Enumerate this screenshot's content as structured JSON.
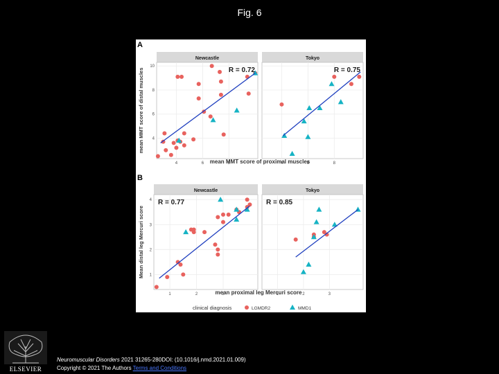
{
  "page_title": "Fig. 6",
  "citation": {
    "journal": "Neuromuscular Disorders",
    "rest": " 2021 31265-280DOI: (10.1016/j.nmd.2021.01.009)",
    "copyright": "Copyright © 2021 The Authors ",
    "terms": "Terms and Conditions"
  },
  "publisher": {
    "name": "ELSEVIER",
    "icon": "elsevier-tree-icon"
  },
  "legend": {
    "title": "clinical diagnosis",
    "items": [
      {
        "label": "LGMDR2",
        "color": "#e8625e",
        "shape": "circle"
      },
      {
        "label": "MMD1",
        "color": "#16b3c4",
        "shape": "triangle"
      }
    ]
  },
  "chart_data": [
    {
      "panel": "A",
      "type": "scatter",
      "xlabel": "mean MMT score of proximal muscles",
      "ylabel": "mean MMT score of distal muscles",
      "facets": [
        {
          "strip": "Newcastle",
          "r_label": "R = 0.72",
          "xlim": [
            2.5,
            10.2
          ],
          "ylim": [
            2.3,
            10.3
          ],
          "xticks": [
            4,
            6,
            8
          ],
          "yticks": [
            4,
            6,
            8,
            10
          ],
          "fit": [
            [
              2.8,
              3.6
            ],
            [
              10.0,
              9.4
            ]
          ],
          "series": [
            {
              "name": "LGMDR2",
              "points": [
                [
                  2.6,
                  2.5
                ],
                [
                  3.0,
                  3.7
                ],
                [
                  3.1,
                  4.4
                ],
                [
                  3.2,
                  3.0
                ],
                [
                  3.6,
                  2.6
                ],
                [
                  3.8,
                  3.6
                ],
                [
                  4.0,
                  3.2
                ],
                [
                  4.1,
                  3.8
                ],
                [
                  4.3,
                  3.7
                ],
                [
                  4.1,
                  9.1
                ],
                [
                  4.4,
                  9.1
                ],
                [
                  4.6,
                  3.4
                ],
                [
                  4.6,
                  4.4
                ],
                [
                  5.3,
                  3.9
                ],
                [
                  5.7,
                  8.5
                ],
                [
                  5.7,
                  7.3
                ],
                [
                  6.1,
                  6.2
                ],
                [
                  6.6,
                  5.8
                ],
                [
                  6.7,
                  10.0
                ],
                [
                  7.3,
                  9.5
                ],
                [
                  7.4,
                  8.7
                ],
                [
                  7.4,
                  7.6
                ],
                [
                  7.6,
                  4.3
                ],
                [
                  9.4,
                  9.1
                ],
                [
                  9.5,
                  7.7
                ],
                [
                  10.0,
                  9.4
                ]
              ]
            },
            {
              "name": "MMD1",
              "points": [
                [
                  4.2,
                  3.8
                ],
                [
                  6.8,
                  5.5
                ],
                [
                  8.6,
                  6.3
                ],
                [
                  10.0,
                  9.4
                ]
              ]
            }
          ]
        },
        {
          "strip": "Tokyo",
          "r_label": "R = 0.75",
          "xlim": [
            2.5,
            10.2
          ],
          "ylim": [
            2.3,
            10.3
          ],
          "xticks": [
            4,
            6,
            8
          ],
          "yticks": [],
          "fit": [
            [
              4.1,
              4.2
            ],
            [
              10.0,
              9.5
            ]
          ],
          "series": [
            {
              "name": "LGMDR2",
              "points": [
                [
                  4.0,
                  6.8
                ],
                [
                  8.0,
                  9.1
                ],
                [
                  9.3,
                  8.5
                ],
                [
                  9.9,
                  9.1
                ]
              ]
            },
            {
              "name": "MMD1",
              "points": [
                [
                  4.2,
                  4.2
                ],
                [
                  4.8,
                  2.7
                ],
                [
                  5.7,
                  5.4
                ],
                [
                  6.0,
                  4.1
                ],
                [
                  6.1,
                  6.5
                ],
                [
                  6.9,
                  6.5
                ],
                [
                  7.8,
                  8.5
                ],
                [
                  8.5,
                  7.0
                ]
              ]
            }
          ]
        }
      ]
    },
    {
      "panel": "B",
      "type": "scatter",
      "xlabel": "mean proximal leg Mercuri score",
      "ylabel": "Mean distal leg Mercuri score",
      "facets": [
        {
          "strip": "Newcastle",
          "r_label": "R = 0.77",
          "xlim": [
            0.4,
            4.3
          ],
          "ylim": [
            0.4,
            4.2
          ],
          "xticks": [
            1,
            2,
            3
          ],
          "yticks": [
            1,
            2,
            3,
            4
          ],
          "fit": [
            [
              0.6,
              0.85
            ],
            [
              4.0,
              3.75
            ]
          ],
          "series": [
            {
              "name": "LGMDR2",
              "points": [
                [
                  0.5,
                  0.5
                ],
                [
                  0.9,
                  0.9
                ],
                [
                  1.3,
                  1.5
                ],
                [
                  1.4,
                  1.4
                ],
                [
                  1.5,
                  1.0
                ],
                [
                  1.8,
                  2.8
                ],
                [
                  1.9,
                  2.7
                ],
                [
                  1.9,
                  2.8
                ],
                [
                  2.3,
                  2.7
                ],
                [
                  2.7,
                  2.2
                ],
                [
                  2.8,
                  2.0
                ],
                [
                  2.8,
                  1.8
                ],
                [
                  2.8,
                  3.3
                ],
                [
                  3.0,
                  3.1
                ],
                [
                  3.0,
                  3.4
                ],
                [
                  3.2,
                  3.4
                ],
                [
                  3.5,
                  3.6
                ],
                [
                  3.6,
                  3.5
                ],
                [
                  3.9,
                  4.0
                ],
                [
                  3.9,
                  3.7
                ],
                [
                  4.0,
                  3.8
                ]
              ]
            },
            {
              "name": "MMD1",
              "points": [
                [
                  1.6,
                  2.7
                ],
                [
                  2.9,
                  4.0
                ],
                [
                  3.5,
                  3.2
                ],
                [
                  3.9,
                  3.6
                ],
                [
                  3.5,
                  3.6
                ]
              ]
            }
          ]
        },
        {
          "strip": "Tokyo",
          "r_label": "R = 0.85",
          "xlim": [
            0.4,
            4.3
          ],
          "ylim": [
            0.4,
            4.2
          ],
          "xticks": [
            1,
            2,
            3
          ],
          "yticks": [],
          "fit": [
            [
              1.7,
              1.7
            ],
            [
              4.1,
              3.6
            ]
          ],
          "series": [
            {
              "name": "LGMDR2",
              "points": [
                [
                  1.7,
                  2.4
                ],
                [
                  2.4,
                  2.5
                ],
                [
                  2.4,
                  2.6
                ],
                [
                  2.8,
                  2.7
                ],
                [
                  2.9,
                  2.6
                ]
              ]
            },
            {
              "name": "MMD1",
              "points": [
                [
                  2.0,
                  1.1
                ],
                [
                  2.2,
                  1.4
                ],
                [
                  2.4,
                  2.5
                ],
                [
                  2.5,
                  3.1
                ],
                [
                  2.6,
                  3.6
                ],
                [
                  3.2,
                  3.0
                ],
                [
                  4.1,
                  3.6
                ]
              ]
            }
          ]
        }
      ]
    }
  ]
}
